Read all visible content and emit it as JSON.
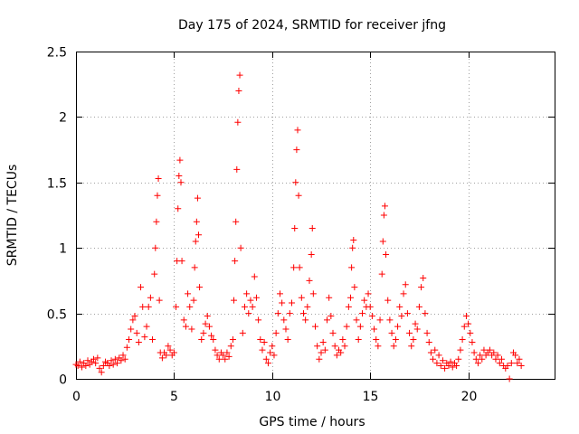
{
  "chart_data": {
    "type": "scatter",
    "title": "Day 175 of 2024, SRMTID for receiver jfng",
    "xlabel": "GPS time / hours",
    "ylabel": "SRMTID / TECUs",
    "xlim": [
      0,
      24.4
    ],
    "ylim": [
      0,
      2.5
    ],
    "xticks": [
      0,
      5,
      10,
      15,
      20
    ],
    "xtick_labels": [
      "0",
      "5",
      "10",
      "15",
      "20"
    ],
    "yticks": [
      0,
      0.5,
      1,
      1.5,
      2,
      2.5
    ],
    "ytick_labels": [
      "0",
      "0.5",
      "1",
      "1.5",
      "2",
      "2.5"
    ],
    "grid": true,
    "marker": "plus",
    "color": "#ff0000",
    "series": [
      {
        "name": "SRMTID",
        "points": [
          [
            0.0,
            0.11
          ],
          [
            0.1,
            0.1
          ],
          [
            0.2,
            0.13
          ],
          [
            0.3,
            0.09
          ],
          [
            0.4,
            0.12
          ],
          [
            0.5,
            0.1
          ],
          [
            0.6,
            0.14
          ],
          [
            0.7,
            0.11
          ],
          [
            0.8,
            0.13
          ],
          [
            0.9,
            0.15
          ],
          [
            1.0,
            0.12
          ],
          [
            1.1,
            0.16
          ],
          [
            1.2,
            0.08
          ],
          [
            1.3,
            0.05
          ],
          [
            1.4,
            0.1
          ],
          [
            1.5,
            0.13
          ],
          [
            1.6,
            0.12
          ],
          [
            1.7,
            0.1
          ],
          [
            1.8,
            0.14
          ],
          [
            1.9,
            0.11
          ],
          [
            2.0,
            0.15
          ],
          [
            2.1,
            0.12
          ],
          [
            2.2,
            0.16
          ],
          [
            2.3,
            0.14
          ],
          [
            2.4,
            0.18
          ],
          [
            2.5,
            0.15
          ],
          [
            2.6,
            0.24
          ],
          [
            2.7,
            0.3
          ],
          [
            2.8,
            0.38
          ],
          [
            2.9,
            0.45
          ],
          [
            3.0,
            0.48
          ],
          [
            3.1,
            0.35
          ],
          [
            3.2,
            0.28
          ],
          [
            3.3,
            0.7
          ],
          [
            3.4,
            0.55
          ],
          [
            3.5,
            0.32
          ],
          [
            3.6,
            0.4
          ],
          [
            3.7,
            0.55
          ],
          [
            3.8,
            0.62
          ],
          [
            3.9,
            0.3
          ],
          [
            4.0,
            0.8
          ],
          [
            4.05,
            1.0
          ],
          [
            4.1,
            1.2
          ],
          [
            4.15,
            1.4
          ],
          [
            4.2,
            1.53
          ],
          [
            4.25,
            0.6
          ],
          [
            4.3,
            0.2
          ],
          [
            4.4,
            0.16
          ],
          [
            4.5,
            0.2
          ],
          [
            4.6,
            0.18
          ],
          [
            4.7,
            0.25
          ],
          [
            4.8,
            0.22
          ],
          [
            4.9,
            0.18
          ],
          [
            5.0,
            0.2
          ],
          [
            5.1,
            0.55
          ],
          [
            5.15,
            0.9
          ],
          [
            5.2,
            1.3
          ],
          [
            5.25,
            1.55
          ],
          [
            5.3,
            1.67
          ],
          [
            5.35,
            1.5
          ],
          [
            5.4,
            0.9
          ],
          [
            5.5,
            0.45
          ],
          [
            5.6,
            0.4
          ],
          [
            5.7,
            0.65
          ],
          [
            5.8,
            0.55
          ],
          [
            5.9,
            0.38
          ],
          [
            6.0,
            0.6
          ],
          [
            6.05,
            0.85
          ],
          [
            6.1,
            1.05
          ],
          [
            6.15,
            1.2
          ],
          [
            6.2,
            1.38
          ],
          [
            6.25,
            1.1
          ],
          [
            6.3,
            0.7
          ],
          [
            6.4,
            0.3
          ],
          [
            6.5,
            0.35
          ],
          [
            6.6,
            0.42
          ],
          [
            6.7,
            0.48
          ],
          [
            6.8,
            0.4
          ],
          [
            6.9,
            0.33
          ],
          [
            7.0,
            0.3
          ],
          [
            7.1,
            0.22
          ],
          [
            7.2,
            0.18
          ],
          [
            7.3,
            0.15
          ],
          [
            7.4,
            0.2
          ],
          [
            7.5,
            0.18
          ],
          [
            7.6,
            0.15
          ],
          [
            7.7,
            0.2
          ],
          [
            7.8,
            0.17
          ],
          [
            7.9,
            0.25
          ],
          [
            8.0,
            0.3
          ],
          [
            8.05,
            0.6
          ],
          [
            8.1,
            0.9
          ],
          [
            8.15,
            1.2
          ],
          [
            8.2,
            1.6
          ],
          [
            8.25,
            1.96
          ],
          [
            8.3,
            2.2
          ],
          [
            8.35,
            2.32
          ],
          [
            8.4,
            1.0
          ],
          [
            8.5,
            0.35
          ],
          [
            8.6,
            0.55
          ],
          [
            8.7,
            0.65
          ],
          [
            8.8,
            0.5
          ],
          [
            8.9,
            0.6
          ],
          [
            9.0,
            0.55
          ],
          [
            9.1,
            0.78
          ],
          [
            9.2,
            0.62
          ],
          [
            9.3,
            0.45
          ],
          [
            9.4,
            0.3
          ],
          [
            9.5,
            0.22
          ],
          [
            9.6,
            0.28
          ],
          [
            9.7,
            0.15
          ],
          [
            9.8,
            0.12
          ],
          [
            9.9,
            0.2
          ],
          [
            10.0,
            0.25
          ],
          [
            10.1,
            0.18
          ],
          [
            10.2,
            0.35
          ],
          [
            10.3,
            0.5
          ],
          [
            10.4,
            0.65
          ],
          [
            10.5,
            0.58
          ],
          [
            10.6,
            0.45
          ],
          [
            10.7,
            0.38
          ],
          [
            10.8,
            0.3
          ],
          [
            10.9,
            0.5
          ],
          [
            11.0,
            0.58
          ],
          [
            11.1,
            0.85
          ],
          [
            11.15,
            1.15
          ],
          [
            11.2,
            1.5
          ],
          [
            11.25,
            1.75
          ],
          [
            11.3,
            1.9
          ],
          [
            11.35,
            1.4
          ],
          [
            11.4,
            0.85
          ],
          [
            11.5,
            0.62
          ],
          [
            11.6,
            0.5
          ],
          [
            11.7,
            0.45
          ],
          [
            11.8,
            0.55
          ],
          [
            11.9,
            0.75
          ],
          [
            12.0,
            0.95
          ],
          [
            12.05,
            1.15
          ],
          [
            12.1,
            0.65
          ],
          [
            12.2,
            0.4
          ],
          [
            12.3,
            0.25
          ],
          [
            12.4,
            0.15
          ],
          [
            12.5,
            0.2
          ],
          [
            12.6,
            0.28
          ],
          [
            12.7,
            0.22
          ],
          [
            12.8,
            0.45
          ],
          [
            12.9,
            0.62
          ],
          [
            13.0,
            0.48
          ],
          [
            13.1,
            0.35
          ],
          [
            13.2,
            0.25
          ],
          [
            13.3,
            0.18
          ],
          [
            13.4,
            0.22
          ],
          [
            13.5,
            0.2
          ],
          [
            13.6,
            0.3
          ],
          [
            13.7,
            0.25
          ],
          [
            13.8,
            0.4
          ],
          [
            13.9,
            0.55
          ],
          [
            14.0,
            0.62
          ],
          [
            14.05,
            0.85
          ],
          [
            14.1,
            1.0
          ],
          [
            14.15,
            1.06
          ],
          [
            14.2,
            0.7
          ],
          [
            14.3,
            0.45
          ],
          [
            14.4,
            0.3
          ],
          [
            14.5,
            0.4
          ],
          [
            14.6,
            0.5
          ],
          [
            14.7,
            0.6
          ],
          [
            14.8,
            0.55
          ],
          [
            14.9,
            0.65
          ],
          [
            15.0,
            0.55
          ],
          [
            15.1,
            0.48
          ],
          [
            15.2,
            0.38
          ],
          [
            15.3,
            0.3
          ],
          [
            15.4,
            0.25
          ],
          [
            15.5,
            0.45
          ],
          [
            15.6,
            0.8
          ],
          [
            15.65,
            1.05
          ],
          [
            15.7,
            1.25
          ],
          [
            15.75,
            1.32
          ],
          [
            15.8,
            0.95
          ],
          [
            15.9,
            0.6
          ],
          [
            16.0,
            0.45
          ],
          [
            16.1,
            0.35
          ],
          [
            16.2,
            0.25
          ],
          [
            16.3,
            0.3
          ],
          [
            16.4,
            0.4
          ],
          [
            16.5,
            0.55
          ],
          [
            16.6,
            0.48
          ],
          [
            16.7,
            0.65
          ],
          [
            16.8,
            0.72
          ],
          [
            16.9,
            0.5
          ],
          [
            17.0,
            0.35
          ],
          [
            17.1,
            0.25
          ],
          [
            17.2,
            0.3
          ],
          [
            17.3,
            0.42
          ],
          [
            17.4,
            0.38
          ],
          [
            17.5,
            0.55
          ],
          [
            17.6,
            0.7
          ],
          [
            17.7,
            0.77
          ],
          [
            17.8,
            0.5
          ],
          [
            17.9,
            0.35
          ],
          [
            18.0,
            0.28
          ],
          [
            18.1,
            0.2
          ],
          [
            18.2,
            0.15
          ],
          [
            18.3,
            0.22
          ],
          [
            18.4,
            0.12
          ],
          [
            18.5,
            0.18
          ],
          [
            18.6,
            0.1
          ],
          [
            18.7,
            0.14
          ],
          [
            18.8,
            0.08
          ],
          [
            18.9,
            0.12
          ],
          [
            19.0,
            0.1
          ],
          [
            19.1,
            0.13
          ],
          [
            19.2,
            0.09
          ],
          [
            19.3,
            0.12
          ],
          [
            19.4,
            0.1
          ],
          [
            19.5,
            0.15
          ],
          [
            19.6,
            0.22
          ],
          [
            19.7,
            0.3
          ],
          [
            19.8,
            0.4
          ],
          [
            19.9,
            0.48
          ],
          [
            20.0,
            0.42
          ],
          [
            20.1,
            0.35
          ],
          [
            20.2,
            0.28
          ],
          [
            20.3,
            0.2
          ],
          [
            20.4,
            0.15
          ],
          [
            20.5,
            0.12
          ],
          [
            20.6,
            0.18
          ],
          [
            20.7,
            0.15
          ],
          [
            20.8,
            0.22
          ],
          [
            20.9,
            0.18
          ],
          [
            21.0,
            0.2
          ],
          [
            21.1,
            0.22
          ],
          [
            21.2,
            0.18
          ],
          [
            21.3,
            0.2
          ],
          [
            21.4,
            0.15
          ],
          [
            21.5,
            0.18
          ],
          [
            21.6,
            0.12
          ],
          [
            21.7,
            0.15
          ],
          [
            21.8,
            0.1
          ],
          [
            21.9,
            0.08
          ],
          [
            22.0,
            0.1
          ],
          [
            22.1,
            0.0
          ],
          [
            22.2,
            0.12
          ],
          [
            22.3,
            0.2
          ],
          [
            22.4,
            0.18
          ],
          [
            22.5,
            0.12
          ],
          [
            22.6,
            0.15
          ],
          [
            22.7,
            0.1
          ]
        ]
      }
    ]
  }
}
